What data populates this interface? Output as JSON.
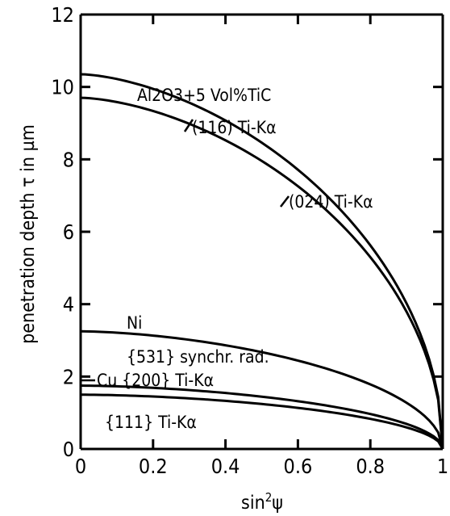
{
  "chart_data": {
    "type": "line",
    "xlabel": "sin²ψ",
    "xlabel_base": "sin",
    "xlabel_sup": "2",
    "xlabel_sym": "ψ",
    "ylabel": "penetration depth τ in µm",
    "xlim": [
      0,
      1
    ],
    "ylim": [
      0,
      12
    ],
    "x_ticks": [
      "0",
      "0.2",
      "0.4",
      "0.6",
      "0.8",
      "1"
    ],
    "y_ticks": [
      "0",
      "2",
      "4",
      "6",
      "8",
      "10",
      "12"
    ],
    "grid": false,
    "series": [
      {
        "name": "(116) Ti-Kα",
        "y0": 10.35
      },
      {
        "name": "(024) Ti-Kα",
        "y0": 9.7
      },
      {
        "name": "{531} synchr. rad.",
        "y0": 3.25
      },
      {
        "name": "{200} Ti-Kα",
        "y0": 1.75
      },
      {
        "name": "{111} Ti-Kα",
        "y0": 1.5
      }
    ],
    "annotations": {
      "material_al2o3": "Al2O3+5 Vol%TiC",
      "s116": "(116) Ti-Kα",
      "s024": "(024) Ti-Kα",
      "ni_label": "Ni",
      "s531": "{531} synchr. rad.",
      "s200": "Cu {200} Ti-Kα",
      "s111": "{111} Ti-Kα"
    }
  }
}
